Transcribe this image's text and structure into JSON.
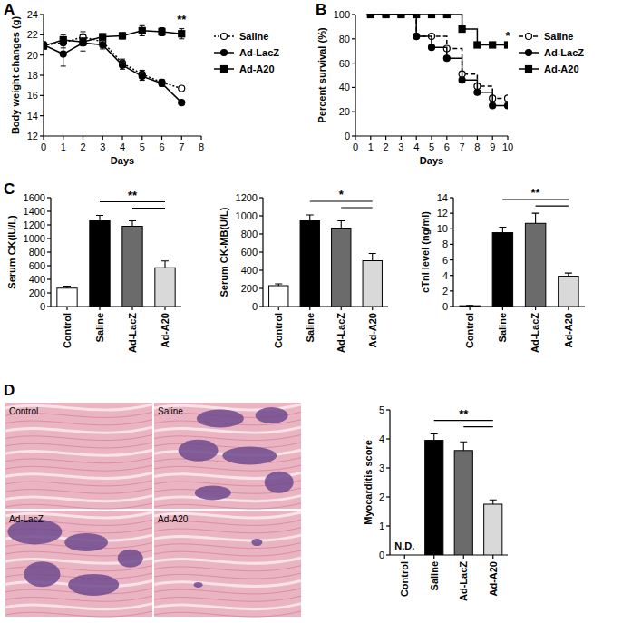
{
  "chart_data": [
    {
      "panel": "A",
      "type": "line",
      "xlabel": "Days",
      "ylabel": "Body weight changes (g)",
      "x": [
        0,
        1,
        2,
        3,
        4,
        5,
        6,
        7
      ],
      "xlim": [
        0,
        8
      ],
      "xticks": [
        0,
        1,
        2,
        3,
        4,
        5,
        6,
        7,
        8
      ],
      "ylim": [
        12,
        24
      ],
      "yticks": [
        12,
        14,
        16,
        18,
        20,
        22,
        24
      ],
      "legend": "right",
      "series": [
        {
          "name": "Saline",
          "color": "#000000",
          "marker": "open_circle",
          "line_style": "dotted",
          "values": [
            21.0,
            21.2,
            21.8,
            21.3,
            19.2,
            18.1,
            17.3,
            16.7
          ],
          "errors": [
            0.3,
            0.5,
            0.5,
            0.3,
            0.4,
            0.4,
            0.3,
            0.0
          ]
        },
        {
          "name": "Ad-LacZ",
          "color": "#000000",
          "marker": "circle",
          "line_style": "solid",
          "values": [
            21.0,
            20.1,
            21.2,
            21.0,
            19.0,
            17.9,
            17.2,
            15.3
          ],
          "errors": [
            0.3,
            1.2,
            0.8,
            0.4,
            0.4,
            0.4,
            0.3,
            0.1
          ]
        },
        {
          "name": "Ad-A20",
          "color": "#000000",
          "marker": "square",
          "line_style": "solid",
          "values": [
            20.9,
            21.5,
            21.3,
            21.8,
            21.9,
            22.4,
            22.3,
            22.1
          ],
          "errors": [
            0.3,
            0.5,
            0.4,
            0.3,
            0.3,
            0.5,
            0.4,
            0.5
          ]
        }
      ],
      "annotations": [
        {
          "text": "**",
          "x": 7
        }
      ]
    },
    {
      "panel": "B",
      "type": "step",
      "xlabel": "Days",
      "ylabel": "Percent survival (%)",
      "x": [
        1,
        2,
        3,
        4,
        5,
        6,
        7,
        8,
        9,
        10
      ],
      "xlim": [
        0,
        10
      ],
      "xticks": [
        0,
        1,
        2,
        3,
        4,
        5,
        6,
        7,
        8,
        9,
        10
      ],
      "ylim": [
        0,
        100
      ],
      "yticks": [
        0,
        20,
        40,
        60,
        80,
        100
      ],
      "legend": "right",
      "series": [
        {
          "name": "Saline",
          "color": "#000000",
          "marker": "open_circle",
          "line_style": "dashed",
          "values": [
            100,
            100,
            100,
            82,
            82,
            72,
            51,
            41,
            31,
            31
          ]
        },
        {
          "name": "Ad-LacZ",
          "color": "#000000",
          "marker": "circle",
          "line_style": "solid",
          "values": [
            100,
            100,
            100,
            82,
            73,
            64,
            46,
            36,
            25,
            25
          ]
        },
        {
          "name": "Ad-A20",
          "color": "#000000",
          "marker": "square",
          "line_style": "solid",
          "values": [
            100,
            100,
            100,
            100,
            100,
            100,
            88,
            75,
            75,
            75
          ]
        }
      ],
      "annotations": [
        {
          "text": "*",
          "x": 10
        }
      ]
    },
    {
      "panel": "C",
      "type": "bar",
      "ylabel": "Serum CK(IU/L)",
      "categories": [
        "Control",
        "Saline",
        "Ad-LacZ",
        "Ad-A20"
      ],
      "values": [
        270,
        1260,
        1180,
        570
      ],
      "errors": [
        30,
        80,
        80,
        100
      ],
      "colors": [
        "#ffffff",
        "#000000",
        "#6b6b6b",
        "#d9d9d9"
      ],
      "ylim": [
        0,
        1600
      ],
      "yticks": [
        0,
        200,
        400,
        600,
        800,
        1000,
        1200,
        1400,
        1600
      ],
      "annotation": "**",
      "brackets": [
        [
          1,
          3
        ],
        [
          2,
          3
        ]
      ]
    },
    {
      "type": "bar",
      "ylabel": "Serum CK-MB(U/L)",
      "categories": [
        "Control",
        "Saline",
        "Ad-LacZ",
        "Ad-A20"
      ],
      "values": [
        230,
        945,
        865,
        505
      ],
      "errors": [
        20,
        65,
        80,
        80
      ],
      "colors": [
        "#ffffff",
        "#000000",
        "#6b6b6b",
        "#d9d9d9"
      ],
      "ylim": [
        0,
        1200
      ],
      "yticks": [
        0,
        200,
        400,
        600,
        800,
        1000,
        1200
      ],
      "annotation": "*",
      "brackets": [
        [
          1,
          3
        ],
        [
          2,
          3
        ]
      ]
    },
    {
      "type": "bar",
      "ylabel": "cTnI level (ng/ml)",
      "categories": [
        "Control",
        "Saline",
        "Ad-LacZ",
        "Ad-A20"
      ],
      "values": [
        0.1,
        9.5,
        10.7,
        3.9
      ],
      "errors": [
        0.05,
        0.7,
        1.3,
        0.4
      ],
      "colors": [
        "#ffffff",
        "#000000",
        "#6b6b6b",
        "#d9d9d9"
      ],
      "ylim": [
        0,
        14
      ],
      "yticks": [
        0,
        2,
        4,
        6,
        8,
        10,
        12,
        14
      ],
      "annotation": "**",
      "brackets": [
        [
          1,
          3
        ],
        [
          2,
          3
        ]
      ]
    },
    {
      "panel": "D",
      "type": "image",
      "labels": [
        "Control",
        "Saline",
        "Ad-LacZ",
        "Ad-A20"
      ]
    },
    {
      "type": "bar",
      "ylabel": "Myocarditis score",
      "categories": [
        "Control",
        "Saline",
        "Ad-LacZ",
        "Ad-A20"
      ],
      "values": [
        null,
        3.95,
        3.6,
        1.75
      ],
      "errors": [
        null,
        0.22,
        0.3,
        0.15
      ],
      "value_labels": [
        "N.D.",
        null,
        null,
        null
      ],
      "colors": [
        "#ffffff",
        "#000000",
        "#6b6b6b",
        "#d9d9d9"
      ],
      "ylim": [
        0,
        5
      ],
      "yticks": [
        0,
        1,
        2,
        3,
        4,
        5
      ],
      "annotation": "**",
      "brackets": [
        [
          1,
          3
        ],
        [
          2,
          3
        ]
      ]
    }
  ]
}
